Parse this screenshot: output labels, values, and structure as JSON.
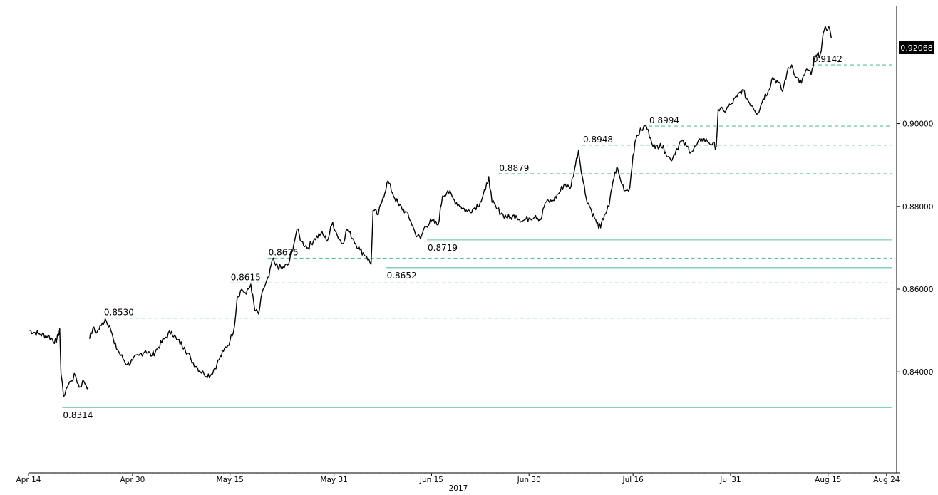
{
  "chart_data": {
    "type": "line",
    "year_label": "2017",
    "last_price_label": "0.92068",
    "colors": {
      "series": "#000000",
      "support_line": "#5fbf9f",
      "background": "#ffffff"
    },
    "ylim": [
      0.8156,
      0.9285
    ],
    "y_ticks": [
      {
        "value": 0.84,
        "label": "0.84000"
      },
      {
        "value": 0.86,
        "label": "0.86000"
      },
      {
        "value": 0.88,
        "label": "0.88000"
      },
      {
        "value": 0.9,
        "label": "0.90000"
      }
    ],
    "x_ticks": [
      {
        "day": 0,
        "label": "Apr 14"
      },
      {
        "day": 16,
        "label": "Apr 30"
      },
      {
        "day": 31,
        "label": "May 15"
      },
      {
        "day": 47,
        "label": "May 31"
      },
      {
        "day": 62,
        "label": "Jun 15"
      },
      {
        "day": 77,
        "label": "Jun 30"
      },
      {
        "day": 93,
        "label": "Jul 16"
      },
      {
        "day": 108,
        "label": "Jul 31"
      },
      {
        "day": 123,
        "label": "Aug 15"
      },
      {
        "day": 132,
        "label": "Aug 24"
      }
    ],
    "levels": [
      {
        "value": 0.8314,
        "label": "0.8314",
        "style": "solid",
        "start_day": 5.2,
        "label_pos": "below"
      },
      {
        "value": 0.853,
        "label": "0.8530",
        "style": "dashed",
        "start_day": 11.5,
        "label_pos": "above"
      },
      {
        "value": 0.8615,
        "label": "0.8615",
        "style": "dashed",
        "start_day": 31.0,
        "label_pos": "above"
      },
      {
        "value": 0.8652,
        "label": "0.8652",
        "style": "solid",
        "start_day": 55.0,
        "label_pos": "below"
      },
      {
        "value": 0.8675,
        "label": "0.8675",
        "style": "dashed",
        "start_day": 36.8,
        "label_pos": "above"
      },
      {
        "value": 0.8719,
        "label": "0.8719",
        "style": "solid",
        "start_day": 61.3,
        "label_pos": "below"
      },
      {
        "value": 0.8879,
        "label": "0.8879",
        "style": "dashed",
        "start_day": 72.3,
        "label_pos": "above"
      },
      {
        "value": 0.8948,
        "label": "0.8948",
        "style": "dashed",
        "start_day": 85.2,
        "label_pos": "above"
      },
      {
        "value": 0.8994,
        "label": "0.8994",
        "style": "dashed",
        "start_day": 95.4,
        "label_pos": "above"
      },
      {
        "value": 0.9142,
        "label": "0.9142",
        "style": "dashed",
        "start_day": 120.5,
        "label_pos": "above"
      }
    ],
    "series": [
      {
        "points": [
          [
            0,
            0.8502
          ],
          [
            1.5,
            0.8492
          ],
          [
            3,
            0.8487
          ],
          [
            4.3,
            0.8472
          ],
          [
            4.8,
            0.8505
          ],
          [
            5.0,
            0.8395
          ],
          [
            5.4,
            0.834
          ],
          [
            5.8,
            0.836
          ],
          [
            6.5,
            0.8378
          ],
          [
            7.2,
            0.8392
          ],
          [
            7.8,
            0.8363
          ],
          [
            8.5,
            0.8378
          ],
          [
            9.2,
            0.8362
          ],
          [
            null,
            null
          ],
          [
            9.4,
            0.848
          ],
          [
            9.9,
            0.8505
          ],
          [
            10.5,
            0.8495
          ],
          [
            11.2,
            0.8512
          ],
          [
            11.8,
            0.8528
          ],
          [
            12.5,
            0.8512
          ],
          [
            13.2,
            0.8468
          ],
          [
            14.2,
            0.844
          ],
          [
            15.2,
            0.8418
          ],
          [
            16.0,
            0.8428
          ],
          [
            17.0,
            0.844
          ],
          [
            18.0,
            0.8452
          ],
          [
            19.0,
            0.844
          ],
          [
            20.0,
            0.846
          ],
          [
            21.0,
            0.8482
          ],
          [
            22.0,
            0.8498
          ],
          [
            22.8,
            0.8478
          ],
          [
            24.0,
            0.846
          ],
          [
            25.0,
            0.843
          ],
          [
            26.0,
            0.841
          ],
          [
            27.0,
            0.8395
          ],
          [
            28.0,
            0.8392
          ],
          [
            29.0,
            0.842
          ],
          [
            30.0,
            0.845
          ],
          [
            31.0,
            0.8475
          ],
          [
            31.7,
            0.8512
          ],
          [
            32.1,
            0.858
          ],
          [
            32.8,
            0.86
          ],
          [
            33.5,
            0.8588
          ],
          [
            34.2,
            0.8612
          ],
          [
            34.8,
            0.855
          ],
          [
            35.4,
            0.854
          ],
          [
            36.1,
            0.86
          ],
          [
            37.0,
            0.863
          ],
          [
            37.5,
            0.8672
          ],
          [
            38.0,
            0.8658
          ],
          [
            39.0,
            0.865
          ],
          [
            40.0,
            0.866
          ],
          [
            40.8,
            0.8708
          ],
          [
            41.3,
            0.8745
          ],
          [
            42.0,
            0.8715
          ],
          [
            43.0,
            0.87
          ],
          [
            44.0,
            0.8722
          ],
          [
            45.0,
            0.8735
          ],
          [
            46.0,
            0.8718
          ],
          [
            46.8,
            0.8762
          ],
          [
            47.5,
            0.873
          ],
          [
            48.3,
            0.871
          ],
          [
            49.0,
            0.8745
          ],
          [
            50.0,
            0.872
          ],
          [
            51.0,
            0.8695
          ],
          [
            52.0,
            0.868
          ],
          [
            52.7,
            0.866
          ],
          [
            53.0,
            0.879
          ],
          [
            53.8,
            0.878
          ],
          [
            54.5,
            0.882
          ],
          [
            55.3,
            0.8862
          ],
          [
            56.0,
            0.8832
          ],
          [
            57.0,
            0.8802
          ],
          [
            58.0,
            0.8788
          ],
          [
            58.8,
            0.8765
          ],
          [
            59.5,
            0.8735
          ],
          [
            60.3,
            0.8722
          ],
          [
            61.0,
            0.8752
          ],
          [
            62.0,
            0.8765
          ],
          [
            63.0,
            0.8755
          ],
          [
            63.7,
            0.8825
          ],
          [
            64.5,
            0.8838
          ],
          [
            65.5,
            0.8815
          ],
          [
            66.5,
            0.88
          ],
          [
            67.5,
            0.8788
          ],
          [
            68.5,
            0.8795
          ],
          [
            69.5,
            0.881
          ],
          [
            70.3,
            0.884
          ],
          [
            70.8,
            0.8872
          ],
          [
            71.3,
            0.881
          ],
          [
            72.0,
            0.8795
          ],
          [
            73.0,
            0.878
          ],
          [
            74.0,
            0.8772
          ],
          [
            75.0,
            0.8778
          ],
          [
            76.0,
            0.8765
          ],
          [
            77.0,
            0.8772
          ],
          [
            78.0,
            0.8778
          ],
          [
            78.8,
            0.8768
          ],
          [
            79.5,
            0.881
          ],
          [
            80.5,
            0.8812
          ],
          [
            81.5,
            0.883
          ],
          [
            82.5,
            0.8855
          ],
          [
            83.3,
            0.8842
          ],
          [
            84.0,
            0.889
          ],
          [
            84.6,
            0.8935
          ],
          [
            85.2,
            0.8872
          ],
          [
            85.8,
            0.882
          ],
          [
            86.6,
            0.879
          ],
          [
            87.4,
            0.876
          ],
          [
            88.0,
            0.8748
          ],
          [
            88.6,
            0.878
          ],
          [
            89.3,
            0.88
          ],
          [
            89.9,
            0.886
          ],
          [
            90.5,
            0.8895
          ],
          [
            91.1,
            0.8862
          ],
          [
            91.8,
            0.8838
          ],
          [
            92.5,
            0.8845
          ],
          [
            93.0,
            0.8925
          ],
          [
            93.6,
            0.8972
          ],
          [
            94.3,
            0.8985
          ],
          [
            95.0,
            0.8995
          ],
          [
            95.7,
            0.8965
          ],
          [
            96.4,
            0.894
          ],
          [
            97.2,
            0.8952
          ],
          [
            98.0,
            0.8932
          ],
          [
            98.8,
            0.8912
          ],
          [
            99.6,
            0.8935
          ],
          [
            100.4,
            0.8958
          ],
          [
            101.2,
            0.8945
          ],
          [
            102.0,
            0.8932
          ],
          [
            102.8,
            0.8948
          ],
          [
            103.6,
            0.8963
          ],
          [
            104.4,
            0.8958
          ],
          [
            105.2,
            0.895
          ],
          [
            105.8,
            0.8945
          ],
          [
            106.1,
            0.9035
          ],
          [
            107.0,
            0.903
          ],
          [
            108.0,
            0.9045
          ],
          [
            109.0,
            0.9065
          ],
          [
            109.8,
            0.9082
          ],
          [
            110.6,
            0.9058
          ],
          [
            111.4,
            0.9042
          ],
          [
            112.2,
            0.9025
          ],
          [
            113.0,
            0.906
          ],
          [
            113.8,
            0.908
          ],
          [
            114.5,
            0.9112
          ],
          [
            115.3,
            0.91
          ],
          [
            116.0,
            0.9078
          ],
          [
            116.7,
            0.9125
          ],
          [
            117.4,
            0.9142
          ],
          [
            118.1,
            0.9112
          ],
          [
            118.9,
            0.9098
          ],
          [
            119.7,
            0.9132
          ],
          [
            120.4,
            0.9118
          ],
          [
            121.0,
            0.916
          ],
          [
            121.8,
            0.9168
          ],
          [
            122.4,
            0.9225
          ],
          [
            123.1,
            0.9235
          ],
          [
            123.5,
            0.9207
          ]
        ]
      }
    ]
  }
}
